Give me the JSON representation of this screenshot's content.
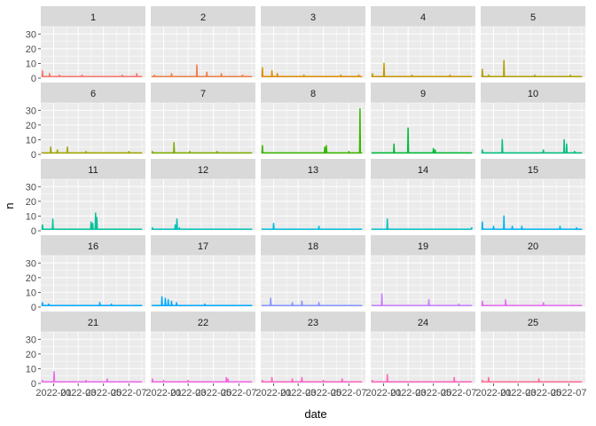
{
  "chart_data": {
    "type": "line",
    "xlabel": "date",
    "ylabel": "n",
    "ylim": [
      0,
      35
    ],
    "y_ticks": [
      0,
      10,
      20,
      30
    ],
    "x_ticks": [
      "2022-01",
      "2022-03",
      "2022-05",
      "2022-07"
    ],
    "xlim": [
      "2021-12-01",
      "2022-08-10"
    ],
    "grid": true,
    "legend": "none",
    "panel_background": "#EBEBEB",
    "strip_background": "#D9D9D9",
    "nrow": 5,
    "ncol": 5,
    "series": [
      {
        "name": "1",
        "color": "#F8766D",
        "baseline": 1,
        "spikes": [
          [
            "2021-12-05",
            5
          ],
          [
            "2021-12-22",
            3
          ],
          [
            "2022-01-15",
            2
          ],
          [
            "2022-03-10",
            2
          ],
          [
            "2022-06-15",
            2
          ],
          [
            "2022-07-20",
            3
          ]
        ]
      },
      {
        "name": "2",
        "color": "#EF7F47",
        "baseline": 1,
        "spikes": [
          [
            "2021-12-10",
            2
          ],
          [
            "2022-01-20",
            3
          ],
          [
            "2022-03-22",
            9
          ],
          [
            "2022-04-15",
            4
          ],
          [
            "2022-05-20",
            3
          ],
          [
            "2022-07-10",
            2
          ]
        ]
      },
      {
        "name": "3",
        "color": "#DE8C00",
        "baseline": 1,
        "spikes": [
          [
            "2021-12-05",
            7
          ],
          [
            "2021-12-28",
            5
          ],
          [
            "2022-01-10",
            3
          ],
          [
            "2022-03-15",
            2
          ],
          [
            "2022-06-12",
            2
          ],
          [
            "2022-07-25",
            2
          ]
        ]
      },
      {
        "name": "4",
        "color": "#C99800",
        "baseline": 1,
        "spikes": [
          [
            "2021-12-05",
            3
          ],
          [
            "2022-01-02",
            10
          ],
          [
            "2022-03-10",
            2
          ],
          [
            "2022-06-10",
            2
          ]
        ]
      },
      {
        "name": "5",
        "color": "#B3A000",
        "baseline": 1,
        "spikes": [
          [
            "2021-12-05",
            6
          ],
          [
            "2021-12-20",
            2
          ],
          [
            "2022-01-26",
            12
          ],
          [
            "2022-04-10",
            2
          ],
          [
            "2022-07-05",
            2
          ]
        ]
      },
      {
        "name": "6",
        "color": "#A3A500",
        "baseline": 1,
        "spikes": [
          [
            "2021-12-25",
            5
          ],
          [
            "2022-01-10",
            3
          ],
          [
            "2022-02-03",
            5
          ],
          [
            "2022-03-20",
            2
          ],
          [
            "2022-07-01",
            2
          ]
        ]
      },
      {
        "name": "7",
        "color": "#7CAE00",
        "baseline": 1,
        "spikes": [
          [
            "2021-12-05",
            2
          ],
          [
            "2022-01-26",
            8
          ],
          [
            "2022-03-05",
            2
          ],
          [
            "2022-05-10",
            2
          ]
        ]
      },
      {
        "name": "8",
        "color": "#39B600",
        "baseline": 1,
        "spikes": [
          [
            "2021-12-05",
            6
          ],
          [
            "2022-05-04",
            5
          ],
          [
            "2022-05-08",
            6
          ],
          [
            "2022-07-01",
            2
          ],
          [
            "2022-07-28",
            31
          ]
        ]
      },
      {
        "name": "9",
        "color": "#00BA38",
        "baseline": 1,
        "spikes": [
          [
            "2022-01-26",
            7
          ],
          [
            "2022-03-01",
            18
          ],
          [
            "2022-05-01",
            4
          ],
          [
            "2022-05-05",
            3
          ]
        ]
      },
      {
        "name": "10",
        "color": "#00BF7D",
        "baseline": 1,
        "spikes": [
          [
            "2021-12-05",
            3
          ],
          [
            "2022-01-22",
            10
          ],
          [
            "2022-05-01",
            3
          ],
          [
            "2022-06-20",
            10
          ],
          [
            "2022-06-26",
            7
          ],
          [
            "2022-07-15",
            2
          ]
        ]
      },
      {
        "name": "11",
        "color": "#00C19A",
        "baseline": 1,
        "spikes": [
          [
            "2021-12-05",
            4
          ],
          [
            "2021-12-30",
            8
          ],
          [
            "2022-04-01",
            6
          ],
          [
            "2022-04-05",
            5
          ],
          [
            "2022-04-12",
            12
          ],
          [
            "2022-04-15",
            9
          ]
        ]
      },
      {
        "name": "12",
        "color": "#00C0B5",
        "baseline": 1,
        "spikes": [
          [
            "2021-12-05",
            2
          ],
          [
            "2022-02-02",
            8
          ],
          [
            "2022-01-29",
            4
          ],
          [
            "2022-02-08",
            2
          ]
        ]
      },
      {
        "name": "13",
        "color": "#00BCD8",
        "baseline": 1,
        "spikes": [
          [
            "2022-01-01",
            5
          ],
          [
            "2022-04-20",
            3
          ]
        ]
      },
      {
        "name": "14",
        "color": "#00BFC4",
        "baseline": 1,
        "spikes": [
          [
            "2022-01-10",
            8
          ],
          [
            "2022-08-01",
            2
          ]
        ]
      },
      {
        "name": "15",
        "color": "#00B4F0",
        "baseline": 1,
        "spikes": [
          [
            "2021-12-05",
            6
          ],
          [
            "2022-01-01",
            3
          ],
          [
            "2022-01-26",
            10
          ],
          [
            "2022-02-15",
            3
          ],
          [
            "2022-03-10",
            3
          ],
          [
            "2022-06-10",
            3
          ],
          [
            "2022-07-20",
            2
          ]
        ]
      },
      {
        "name": "16",
        "color": "#00A9FF",
        "baseline": 1,
        "spikes": [
          [
            "2021-12-05",
            3
          ],
          [
            "2021-12-20",
            2
          ],
          [
            "2022-04-22",
            3
          ],
          [
            "2022-05-20",
            2
          ]
        ]
      },
      {
        "name": "17",
        "color": "#00A9FF",
        "baseline": 1,
        "spikes": [
          [
            "2021-12-28",
            7
          ],
          [
            "2022-01-05",
            6
          ],
          [
            "2022-01-12",
            5
          ],
          [
            "2022-01-20",
            4
          ],
          [
            "2022-02-01",
            3
          ],
          [
            "2022-04-10",
            2
          ]
        ]
      },
      {
        "name": "18",
        "color": "#8494FF",
        "baseline": 1,
        "spikes": [
          [
            "2021-12-25",
            6
          ],
          [
            "2022-02-15",
            3
          ],
          [
            "2022-03-10",
            4
          ],
          [
            "2022-04-20",
            3
          ]
        ]
      },
      {
        "name": "19",
        "color": "#C77CFF",
        "baseline": 1,
        "spikes": [
          [
            "2021-12-28",
            9
          ],
          [
            "2022-04-20",
            5
          ],
          [
            "2022-07-01",
            2
          ]
        ]
      },
      {
        "name": "20",
        "color": "#E76BF3",
        "baseline": 1,
        "spikes": [
          [
            "2021-12-05",
            4
          ],
          [
            "2022-01-30",
            5
          ],
          [
            "2022-05-01",
            3
          ]
        ]
      },
      {
        "name": "21",
        "color": "#ED68ED",
        "baseline": 1,
        "spikes": [
          [
            "2021-12-05",
            2
          ],
          [
            "2022-01-02",
            8
          ],
          [
            "2022-03-20",
            2
          ],
          [
            "2022-05-10",
            3
          ]
        ]
      },
      {
        "name": "22",
        "color": "#F564E3",
        "baseline": 1,
        "spikes": [
          [
            "2021-12-05",
            3
          ],
          [
            "2022-01-01",
            2
          ],
          [
            "2022-03-01",
            2
          ],
          [
            "2022-06-01",
            4
          ],
          [
            "2022-06-05",
            3
          ]
        ]
      },
      {
        "name": "23",
        "color": "#FF61C3",
        "baseline": 1,
        "spikes": [
          [
            "2021-12-05",
            2
          ],
          [
            "2021-12-28",
            4
          ],
          [
            "2022-02-15",
            3
          ],
          [
            "2022-03-10",
            4
          ],
          [
            "2022-05-01",
            2
          ],
          [
            "2022-06-15",
            3
          ]
        ]
      },
      {
        "name": "24",
        "color": "#FF62BC",
        "baseline": 1,
        "spikes": [
          [
            "2021-12-05",
            2
          ],
          [
            "2022-01-10",
            6
          ],
          [
            "2022-06-20",
            4
          ]
        ]
      },
      {
        "name": "25",
        "color": "#FF6C91",
        "baseline": 1,
        "spikes": [
          [
            "2021-12-05",
            2
          ],
          [
            "2021-12-20",
            4
          ],
          [
            "2022-04-20",
            3
          ]
        ]
      }
    ]
  }
}
